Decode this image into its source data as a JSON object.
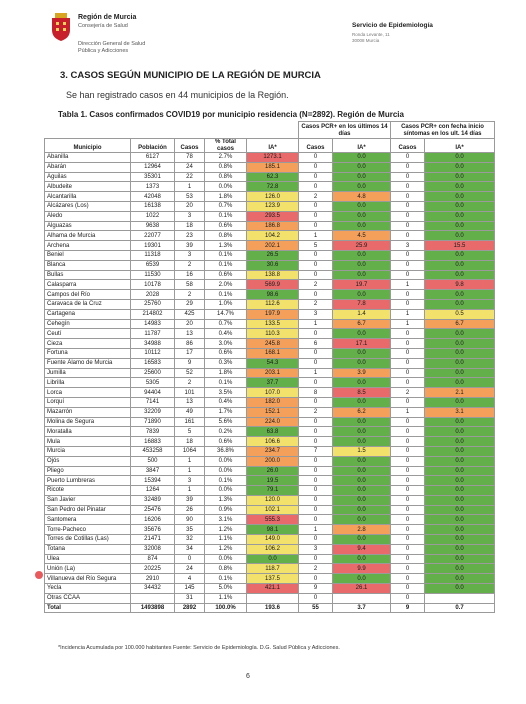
{
  "header": {
    "org_name": "Región de Murcia",
    "org_dept": "Consejería de Salud",
    "org_dir_1": "Dirección General de Salud",
    "org_dir_2": "Pública y Adicciones",
    "service": "Servicio de Epidemiología",
    "address_1": "Ronda Levante, 11",
    "address_2": "30008 Murcia"
  },
  "section": {
    "title": "3. CASOS SEGÚN MUNICIPIO DE LA REGIÓN DE MURCIA",
    "intro": "Se han registrado casos en 44 municipios de la Región."
  },
  "table": {
    "title": "Tabla 1. Casos confirmados COVID19 por municipio residencia (N=2892). Región de Murcia",
    "group1_header": "Casos PCR+ en los últimos 14 días",
    "group2_header": "Casos PCR+ con fecha inicio síntomas en los ult. 14 días",
    "col_municipio": "Municipio",
    "col_poblacion": "Población",
    "col_casos": "Casos",
    "col_pct_total": "% Total casos",
    "col_ia": "IA*",
    "col_casos14": "Casos",
    "col_ia14": "IA*",
    "col_casos_sint": "Casos",
    "col_ia_sint": "IA*",
    "rows": [
      [
        "Abanilla",
        "6127",
        "78",
        "2.7%",
        "1273.1",
        "0",
        "0.0",
        "0",
        "0.0"
      ],
      [
        "Abarán",
        "12964",
        "24",
        "0.8%",
        "185.1",
        "0",
        "0.0",
        "0",
        "0.0"
      ],
      [
        "Aguilas",
        "35301",
        "22",
        "0.8%",
        "62.3",
        "0",
        "0.0",
        "0",
        "0.0"
      ],
      [
        "Albudeite",
        "1373",
        "1",
        "0.0%",
        "72.8",
        "0",
        "0.0",
        "0",
        "0.0"
      ],
      [
        "Alcantarilla",
        "42048",
        "53",
        "1.8%",
        "126.0",
        "2",
        "4.8",
        "0",
        "0.0"
      ],
      [
        "Alcázares (Los)",
        "16138",
        "20",
        "0.7%",
        "123.9",
        "0",
        "0.0",
        "0",
        "0.0"
      ],
      [
        "Aledo",
        "1022",
        "3",
        "0.1%",
        "293.5",
        "0",
        "0.0",
        "0",
        "0.0"
      ],
      [
        "Alguazas",
        "9638",
        "18",
        "0.6%",
        "186.8",
        "0",
        "0.0",
        "0",
        "0.0"
      ],
      [
        "Alhama de Murcia",
        "22077",
        "23",
        "0.8%",
        "104.2",
        "1",
        "4.5",
        "0",
        "0.0"
      ],
      [
        "Archena",
        "19301",
        "39",
        "1.3%",
        "202.1",
        "5",
        "25.9",
        "3",
        "15.5"
      ],
      [
        "Beniel",
        "11318",
        "3",
        "0.1%",
        "26.5",
        "0",
        "0.0",
        "0",
        "0.0"
      ],
      [
        "Blanca",
        "6539",
        "2",
        "0.1%",
        "30.6",
        "0",
        "0.0",
        "0",
        "0.0"
      ],
      [
        "Bullas",
        "11530",
        "16",
        "0.6%",
        "138.8",
        "0",
        "0.0",
        "0",
        "0.0"
      ],
      [
        "Calasparra",
        "10178",
        "58",
        "2.0%",
        "569.9",
        "2",
        "19.7",
        "1",
        "9.8"
      ],
      [
        "Campos del Río",
        "2028",
        "2",
        "0.1%",
        "98.6",
        "0",
        "0.0",
        "0",
        "0.0"
      ],
      [
        "Caravaca de la Cruz",
        "25760",
        "29",
        "1.0%",
        "112.6",
        "2",
        "7.8",
        "0",
        "0.0"
      ],
      [
        "Cartagena",
        "214802",
        "425",
        "14.7%",
        "197.9",
        "3",
        "1.4",
        "1",
        "0.5"
      ],
      [
        "Cehegín",
        "14983",
        "20",
        "0.7%",
        "133.5",
        "1",
        "6.7",
        "1",
        "6.7"
      ],
      [
        "Ceutí",
        "11787",
        "13",
        "0.4%",
        "110.3",
        "0",
        "0.0",
        "0",
        "0.0"
      ],
      [
        "Cieza",
        "34988",
        "86",
        "3.0%",
        "245.8",
        "6",
        "17.1",
        "0",
        "0.0"
      ],
      [
        "Fortuna",
        "10112",
        "17",
        "0.6%",
        "168.1",
        "0",
        "0.0",
        "0",
        "0.0"
      ],
      [
        "Fuente Álamo de Murcia",
        "16583",
        "9",
        "0.3%",
        "54.3",
        "0",
        "0.0",
        "0",
        "0.0"
      ],
      [
        "Jumilla",
        "25600",
        "52",
        "1.8%",
        "203.1",
        "1",
        "3.9",
        "0",
        "0.0"
      ],
      [
        "Librilla",
        "5305",
        "2",
        "0.1%",
        "37.7",
        "0",
        "0.0",
        "0",
        "0.0"
      ],
      [
        "Lorca",
        "94404",
        "101",
        "3.5%",
        "107.0",
        "8",
        "8.5",
        "2",
        "2.1"
      ],
      [
        "Lorquí",
        "7141",
        "13",
        "0.4%",
        "182.0",
        "0",
        "0.0",
        "0",
        "0.0"
      ],
      [
        "Mazarrón",
        "32209",
        "49",
        "1.7%",
        "152.1",
        "2",
        "6.2",
        "1",
        "3.1"
      ],
      [
        "Molina de Segura",
        "71890",
        "161",
        "5.6%",
        "224.0",
        "0",
        "0.0",
        "0",
        "0.0"
      ],
      [
        "Moratalla",
        "7839",
        "5",
        "0.2%",
        "63.8",
        "0",
        "0.0",
        "0",
        "0.0"
      ],
      [
        "Mula",
        "16883",
        "18",
        "0.6%",
        "106.6",
        "0",
        "0.0",
        "0",
        "0.0"
      ],
      [
        "Murcia",
        "453258",
        "1064",
        "36.8%",
        "234.7",
        "7",
        "1.5",
        "0",
        "0.0"
      ],
      [
        "Ojós",
        "500",
        "1",
        "0.0%",
        "200.0",
        "0",
        "0.0",
        "0",
        "0.0"
      ],
      [
        "Pliego",
        "3847",
        "1",
        "0.0%",
        "26.0",
        "0",
        "0.0",
        "0",
        "0.0"
      ],
      [
        "Puerto Lumbreras",
        "15394",
        "3",
        "0.1%",
        "19.5",
        "0",
        "0.0",
        "0",
        "0.0"
      ],
      [
        "Ricote",
        "1264",
        "1",
        "0.0%",
        "79.1",
        "0",
        "0.0",
        "0",
        "0.0"
      ],
      [
        "San Javier",
        "32489",
        "39",
        "1.3%",
        "120.0",
        "0",
        "0.0",
        "0",
        "0.0"
      ],
      [
        "San Pedro del Pinatar",
        "25476",
        "26",
        "0.9%",
        "102.1",
        "0",
        "0.0",
        "0",
        "0.0"
      ],
      [
        "Santomera",
        "16206",
        "90",
        "3.1%",
        "555.3",
        "0",
        "0.0",
        "0",
        "0.0"
      ],
      [
        "Torre-Pacheco",
        "35676",
        "35",
        "1.2%",
        "98.1",
        "1",
        "2.8",
        "0",
        "0.0"
      ],
      [
        "Torres de Cotillas (Las)",
        "21471",
        "32",
        "1.1%",
        "149.0",
        "0",
        "0.0",
        "0",
        "0.0"
      ],
      [
        "Totana",
        "32008",
        "34",
        "1.2%",
        "106.2",
        "3",
        "9.4",
        "0",
        "0.0"
      ],
      [
        "Ulea",
        "874",
        "0",
        "0.0%",
        "0.0",
        "0",
        "0.0",
        "0",
        "0.0"
      ],
      [
        "Unión (La)",
        "20225",
        "24",
        "0.8%",
        "118.7",
        "2",
        "9.9",
        "0",
        "0.0"
      ],
      [
        "Villanueva del Río Segura",
        "2910",
        "4",
        "0.1%",
        "137.5",
        "0",
        "0.0",
        "0",
        "0.0"
      ],
      [
        "Yecla",
        "34432",
        "145",
        "5.0%",
        "421.1",
        "9",
        "26.1",
        "0",
        "0.0"
      ],
      [
        "Otras CCAA",
        "",
        "31",
        "1.1%",
        "",
        "0",
        "",
        "0",
        ""
      ]
    ],
    "total": [
      "Total",
      "1493898",
      "2892",
      "100.0%",
      "193.6",
      "55",
      "3.7",
      "9",
      "0.7"
    ]
  },
  "footnote": "*Incidencia Acumulada por 100.000 habitantes     Fuente: Servicio de Epidemiología. D.G. Salud Pública y Adicciones.",
  "page_number": "6",
  "colors": {
    "green": "#63b04b",
    "yellow": "#f2e16a",
    "orange": "#f5a05a",
    "red": "#e96a6a",
    "crest": "#c8202a"
  }
}
